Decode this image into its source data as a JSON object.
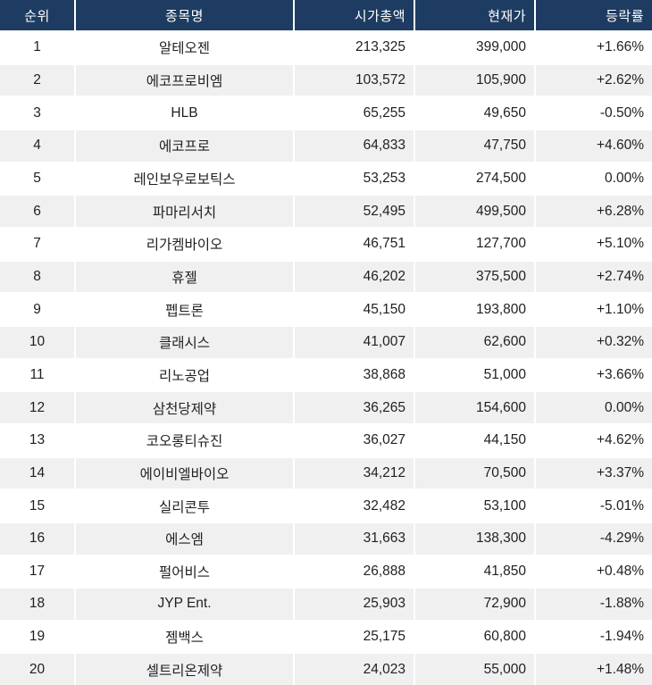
{
  "chart_data": {
    "type": "table",
    "columns": [
      "순위",
      "종목명",
      "시가총액",
      "현재가",
      "등락률"
    ],
    "rows": [
      {
        "rank": "1",
        "name": "알테오젠",
        "market_cap": "213,325",
        "price": "399,000",
        "change": "+1.66%"
      },
      {
        "rank": "2",
        "name": "에코프로비엠",
        "market_cap": "103,572",
        "price": "105,900",
        "change": "+2.62%"
      },
      {
        "rank": "3",
        "name": "HLB",
        "market_cap": "65,255",
        "price": "49,650",
        "change": "-0.50%"
      },
      {
        "rank": "4",
        "name": "에코프로",
        "market_cap": "64,833",
        "price": "47,750",
        "change": "+4.60%"
      },
      {
        "rank": "5",
        "name": "레인보우로보틱스",
        "market_cap": "53,253",
        "price": "274,500",
        "change": "0.00%"
      },
      {
        "rank": "6",
        "name": "파마리서치",
        "market_cap": "52,495",
        "price": "499,500",
        "change": "+6.28%"
      },
      {
        "rank": "7",
        "name": "리가켐바이오",
        "market_cap": "46,751",
        "price": "127,700",
        "change": "+5.10%"
      },
      {
        "rank": "8",
        "name": "휴젤",
        "market_cap": "46,202",
        "price": "375,500",
        "change": "+2.74%"
      },
      {
        "rank": "9",
        "name": "펩트론",
        "market_cap": "45,150",
        "price": "193,800",
        "change": "+1.10%"
      },
      {
        "rank": "10",
        "name": "클래시스",
        "market_cap": "41,007",
        "price": "62,600",
        "change": "+0.32%"
      },
      {
        "rank": "11",
        "name": "리노공업",
        "market_cap": "38,868",
        "price": "51,000",
        "change": "+3.66%"
      },
      {
        "rank": "12",
        "name": "삼천당제약",
        "market_cap": "36,265",
        "price": "154,600",
        "change": "0.00%"
      },
      {
        "rank": "13",
        "name": "코오롱티슈진",
        "market_cap": "36,027",
        "price": "44,150",
        "change": "+4.62%"
      },
      {
        "rank": "14",
        "name": "에이비엘바이오",
        "market_cap": "34,212",
        "price": "70,500",
        "change": "+3.37%"
      },
      {
        "rank": "15",
        "name": "실리콘투",
        "market_cap": "32,482",
        "price": "53,100",
        "change": "-5.01%"
      },
      {
        "rank": "16",
        "name": "에스엠",
        "market_cap": "31,663",
        "price": "138,300",
        "change": "-4.29%"
      },
      {
        "rank": "17",
        "name": "펄어비스",
        "market_cap": "26,888",
        "price": "41,850",
        "change": "+0.48%"
      },
      {
        "rank": "18",
        "name": "JYP Ent.",
        "market_cap": "25,903",
        "price": "72,900",
        "change": "-1.88%"
      },
      {
        "rank": "19",
        "name": "젬백스",
        "market_cap": "25,175",
        "price": "60,800",
        "change": "-1.94%"
      },
      {
        "rank": "20",
        "name": "셀트리온제약",
        "market_cap": "24,023",
        "price": "55,000",
        "change": "+1.48%"
      }
    ]
  },
  "colors": {
    "header_bg": "#1e3c61",
    "header_text": "#ffffff",
    "row_bg": "#ffffff",
    "row_alt_bg": "#f0f0f1",
    "divider": "#ffffff",
    "body_text": "#1f1f1f"
  }
}
